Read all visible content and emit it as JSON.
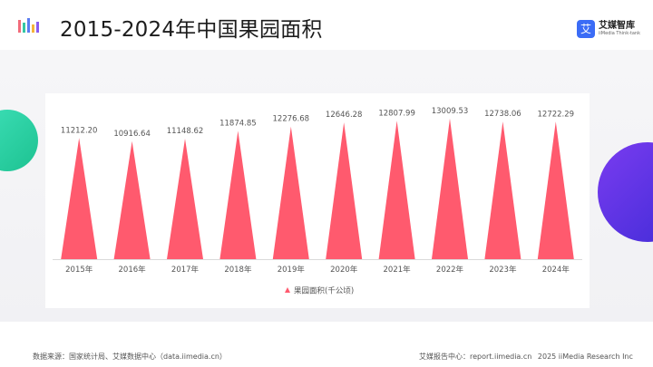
{
  "header": {
    "title": "2015-2024年中国果园面积",
    "brand_icon_glyph": "艾",
    "brand_name": "艾媒智库",
    "brand_sub": "iiMedia Think-tank"
  },
  "colors": {
    "bar": "#ff5a6e",
    "axis": "#d9d9d9",
    "text": "#555555",
    "green_accent": "#2fd3a6",
    "purple_accent": "#5a33e6",
    "brand_blue": "#3b6cf6"
  },
  "chart_data": {
    "type": "bar",
    "shape": "triangle",
    "categories": [
      "2015年",
      "2016年",
      "2017年",
      "2018年",
      "2019年",
      "2020年",
      "2021年",
      "2022年",
      "2023年",
      "2024年"
    ],
    "series": [
      {
        "name": "果园面积(千公顷)",
        "values": [
          11212.2,
          10916.64,
          11148.62,
          11874.85,
          12276.68,
          12646.28,
          12807.99,
          13009.53,
          12738.06,
          12722.29
        ],
        "labels": [
          "11212.20",
          "10916.64",
          "11148.62",
          "11874.85",
          "12276.68",
          "12646.28",
          "12807.99",
          "13009.53",
          "12738.06",
          "12722.29"
        ]
      }
    ],
    "legend_position": "bottom-center",
    "grid": false
  },
  "footer": {
    "source": "数据来源：国家统计局、艾媒数据中心（data.iimedia.cn）",
    "report_center": "艾媒报告中心：report.iimedia.cn",
    "copyright": "2025 iiMedia Research Inc"
  }
}
